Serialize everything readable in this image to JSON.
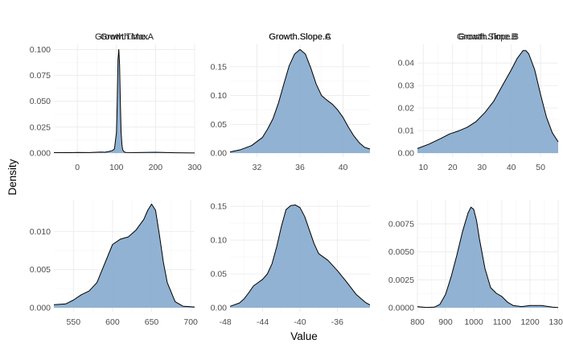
{
  "chart_data": {
    "type": "area",
    "xlabel": "Value",
    "ylabel": "Density",
    "fill_color": "#8BAED0",
    "line_color": "#000000",
    "grid": true,
    "panels": [
      {
        "title": "Growth.Time.A",
        "xlim": [
          -60,
          300
        ],
        "ylim": [
          0,
          0.1
        ],
        "xticks": [
          0,
          100,
          200,
          300
        ],
        "yticks": [
          0.0,
          0.025,
          0.05,
          0.075,
          0.1
        ],
        "ytick_labels": [
          "0.000",
          "0.025",
          "0.050",
          "0.075",
          "0.100"
        ],
        "x": [
          -60,
          -20,
          0,
          30,
          60,
          70,
          80,
          90,
          95,
          100,
          102,
          104,
          106,
          108,
          110,
          112,
          114,
          116,
          120,
          125,
          150,
          200,
          250,
          300
        ],
        "y": [
          0.0005,
          0.0004,
          0.0006,
          0.0005,
          0.001,
          0.0008,
          0.0015,
          0.0025,
          0.004,
          0.02,
          0.05,
          0.09,
          0.1,
          0.085,
          0.05,
          0.02,
          0.008,
          0.003,
          0.001,
          0.0006,
          0.0005,
          0.0008,
          0.0003,
          0.0001
        ]
      },
      {
        "title": "Growth.Slope.A",
        "xlim": [
          29.5,
          42.5
        ],
        "ylim": [
          0,
          0.18
        ],
        "xticks": [
          32,
          36,
          40
        ],
        "yticks": [
          0.0,
          0.05,
          0.1,
          0.15
        ],
        "ytick_labels": [
          "0.00",
          "0.05",
          "0.10",
          "0.15"
        ],
        "x": [
          29.5,
          30.5,
          31.5,
          32.5,
          33,
          33.5,
          34,
          34.5,
          35,
          35.5,
          36,
          36.5,
          37,
          37.5,
          38,
          38.5,
          39,
          39.5,
          40,
          40.5,
          41,
          41.5,
          42,
          42.5
        ],
        "y": [
          0.002,
          0.006,
          0.013,
          0.027,
          0.042,
          0.06,
          0.087,
          0.12,
          0.152,
          0.172,
          0.18,
          0.172,
          0.148,
          0.12,
          0.1,
          0.092,
          0.085,
          0.075,
          0.062,
          0.045,
          0.03,
          0.018,
          0.01,
          0.007
        ]
      },
      {
        "title": "Growth.Slope.B",
        "xlim": [
          8,
          56
        ],
        "ylim": [
          0,
          0.046
        ],
        "xticks": [
          10,
          20,
          30,
          40,
          50
        ],
        "yticks": [
          0.0,
          0.01,
          0.02,
          0.03,
          0.04
        ],
        "ytick_labels": [
          "0.00",
          "0.01",
          "0.02",
          "0.03",
          "0.04"
        ],
        "x": [
          8,
          12,
          16,
          19,
          22,
          25,
          28,
          31,
          34,
          37,
          40,
          42,
          44,
          45,
          46,
          48,
          50,
          52,
          54,
          56
        ],
        "y": [
          0.002,
          0.004,
          0.0065,
          0.0085,
          0.0098,
          0.0115,
          0.014,
          0.018,
          0.023,
          0.03,
          0.037,
          0.042,
          0.0455,
          0.0455,
          0.044,
          0.037,
          0.026,
          0.016,
          0.009,
          0.005
        ]
      },
      {
        "title": "Growth.Max",
        "xlim": [
          525,
          705
        ],
        "ylim": [
          0,
          0.0135
        ],
        "xticks": [
          550,
          600,
          650,
          700
        ],
        "yticks": [
          0.0,
          0.005,
          0.01
        ],
        "ytick_labels": [
          "0.000",
          "0.005",
          "0.010"
        ],
        "x": [
          525,
          540,
          550,
          560,
          570,
          580,
          590,
          600,
          610,
          620,
          630,
          640,
          645,
          650,
          655,
          660,
          665,
          670,
          680,
          690,
          705
        ],
        "y": [
          0.0004,
          0.0005,
          0.001,
          0.0017,
          0.0022,
          0.0033,
          0.0058,
          0.0083,
          0.009,
          0.0093,
          0.0102,
          0.0116,
          0.0128,
          0.0136,
          0.0128,
          0.0095,
          0.006,
          0.0033,
          0.0008,
          0.0002,
          0.0001
        ]
      },
      {
        "title": "Growth.Slope.C",
        "xlim": [
          -47.5,
          -32.5
        ],
        "ylim": [
          0,
          0.152
        ],
        "xticks": [
          -48,
          -44,
          -40,
          -36
        ],
        "yticks": [
          0.0,
          0.05,
          0.1,
          0.15
        ],
        "ytick_labels": [
          "0.00",
          "0.05",
          "0.10",
          "0.15"
        ],
        "x": [
          -47.5,
          -46.5,
          -46,
          -45.5,
          -45,
          -44.5,
          -44,
          -43.5,
          -43,
          -42.5,
          -42,
          -41.5,
          -41,
          -40.5,
          -40,
          -39.5,
          -39,
          -38.5,
          -38,
          -37,
          -36,
          -35,
          -34,
          -33,
          -32.5
        ],
        "y": [
          0.002,
          0.007,
          0.013,
          0.022,
          0.032,
          0.037,
          0.042,
          0.05,
          0.065,
          0.09,
          0.12,
          0.145,
          0.151,
          0.152,
          0.148,
          0.135,
          0.115,
          0.095,
          0.08,
          0.07,
          0.055,
          0.038,
          0.02,
          0.008,
          0.004
        ]
      },
      {
        "title": "Growth.Time.B",
        "xlim": [
          800,
          1300
        ],
        "ylim": [
          0,
          0.0092
        ],
        "xticks": [
          800,
          900,
          1000,
          1100,
          1200,
          1300
        ],
        "yticks": [
          0.0,
          0.0025,
          0.005,
          0.0075
        ],
        "ytick_labels": [
          "0.0000",
          "0.0025",
          "0.0050",
          "0.0075"
        ],
        "x": [
          800,
          830,
          860,
          880,
          900,
          920,
          940,
          960,
          980,
          990,
          1000,
          1010,
          1020,
          1040,
          1060,
          1080,
          1100,
          1120,
          1140,
          1170,
          1200,
          1240,
          1280,
          1300
        ],
        "y": [
          0.0001,
          3e-05,
          5e-05,
          0.0003,
          0.0012,
          0.0028,
          0.0047,
          0.0068,
          0.0085,
          0.009,
          0.0088,
          0.0078,
          0.0062,
          0.0035,
          0.0018,
          0.0013,
          0.001,
          0.0005,
          0.0002,
          0.0001,
          0.0002,
          0.0002,
          5e-05,
          2e-05
        ]
      }
    ]
  }
}
